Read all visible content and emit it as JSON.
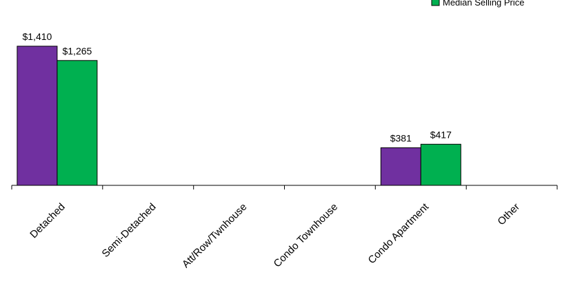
{
  "chart_data": {
    "type": "bar",
    "title": "",
    "xlabel": "",
    "ylabel": "",
    "categories": [
      "Detached",
      "Semi-Detached",
      "Att/Row/Twnhouse",
      "Condo Townhouse",
      "Condo Apartment",
      "Other"
    ],
    "series": [
      {
        "name": "",
        "color": "#7030A0",
        "values": [
          1410,
          null,
          null,
          null,
          381,
          null
        ],
        "labels": [
          "$1,410",
          "",
          "",
          "",
          "$381",
          ""
        ]
      },
      {
        "name": "Median Selling Price",
        "color": "#00B050",
        "values": [
          1265,
          null,
          null,
          null,
          417,
          null
        ],
        "labels": [
          "$1,265",
          "",
          "",
          "",
          "$417",
          ""
        ]
      }
    ],
    "ylim": [
      0,
      1410
    ],
    "grid": false,
    "legend_position": "top-right"
  }
}
